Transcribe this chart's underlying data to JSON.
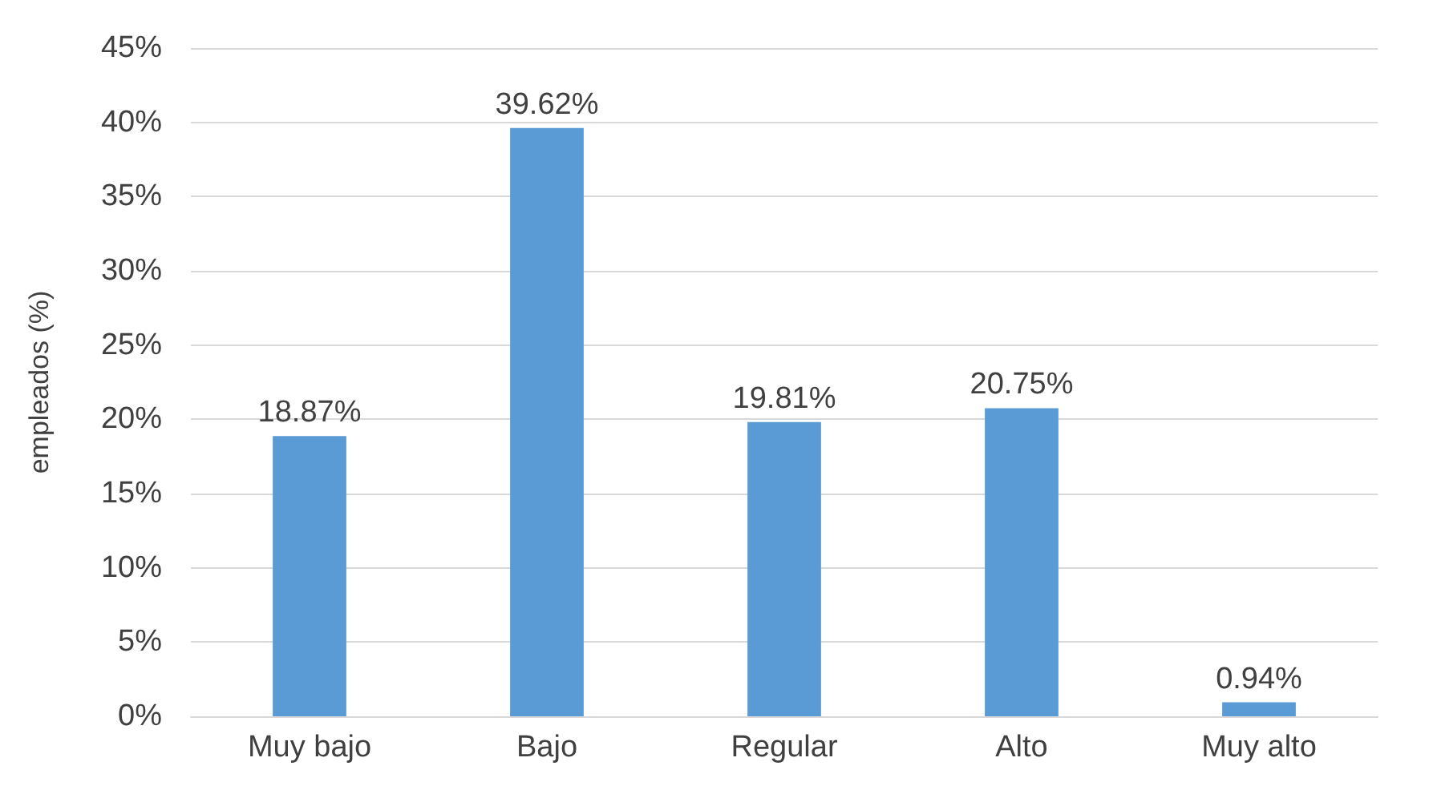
{
  "chart_data": {
    "type": "bar",
    "ylabel": "empleados (%)",
    "categories": [
      "Muy bajo",
      "Bajo",
      "Regular",
      "Alto",
      "Muy alto"
    ],
    "values": [
      18.87,
      39.62,
      19.81,
      20.75,
      0.94
    ],
    "value_labels": [
      "18.87%",
      "39.62%",
      "19.81%",
      "20.75%",
      "0.94%"
    ],
    "color": "#5b9bd5",
    "ylim": [
      0,
      45
    ],
    "yticks": [
      {
        "value": 0,
        "label": "0%"
      },
      {
        "value": 5,
        "label": "5%"
      },
      {
        "value": 10,
        "label": "10%"
      },
      {
        "value": 15,
        "label": "15%"
      },
      {
        "value": 20,
        "label": "20%"
      },
      {
        "value": 25,
        "label": "25%"
      },
      {
        "value": 30,
        "label": "30%"
      },
      {
        "value": 35,
        "label": "35%"
      },
      {
        "value": 40,
        "label": "40%"
      },
      {
        "value": 45,
        "label": "45%"
      }
    ],
    "grid": "y"
  }
}
